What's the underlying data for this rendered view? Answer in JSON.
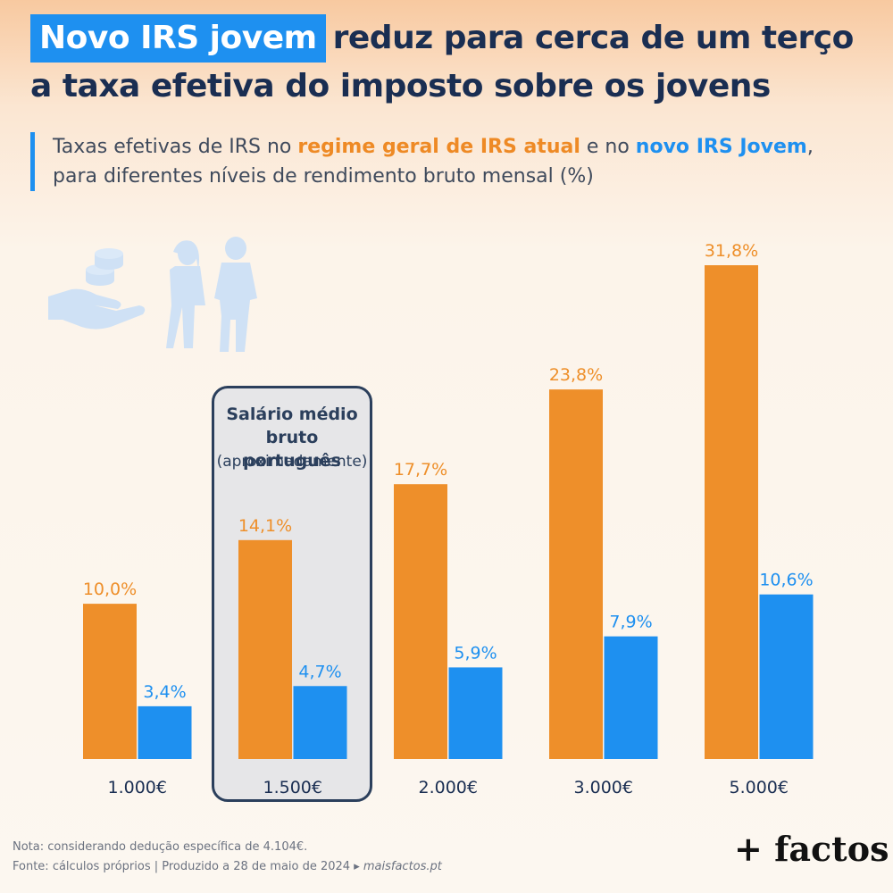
{
  "title": {
    "highlight": "Novo IRS jovem",
    "line1_rest": "reduz para cerca de um terço",
    "line2": "a taxa efetiva do imposto sobre os jovens"
  },
  "subtitle": {
    "part1": "Taxas efetivas de IRS no ",
    "orange": "regime geral de IRS atual",
    "part2": " e no ",
    "blue": "novo IRS Jovem",
    "part3": ",",
    "line2": "para diferentes níveis de rendimento bruto mensal (%)"
  },
  "highlight_box": {
    "title_line1": "Salário médio",
    "title_line2": "bruto português",
    "subtitle": "(aproximadamente)"
  },
  "colors": {
    "orange": "#ee8f2a",
    "blue": "#1e90f0",
    "dark": "#2b3f5c"
  },
  "chart_data": {
    "type": "bar",
    "categories": [
      "1.000€",
      "1.500€",
      "2.000€",
      "3.000€",
      "5.000€"
    ],
    "series": [
      {
        "name": "regime geral de IRS atual",
        "values": [
          10.0,
          14.1,
          17.7,
          23.8,
          31.8
        ],
        "labels": [
          "10,0%",
          "14,1%",
          "17,7%",
          "23,8%",
          "31,8%"
        ]
      },
      {
        "name": "novo IRS Jovem",
        "values": [
          3.4,
          4.7,
          5.9,
          7.9,
          10.6
        ],
        "labels": [
          "3,4%",
          "4,7%",
          "5,9%",
          "7,9%",
          "10,6%"
        ]
      }
    ],
    "ylim": [
      0,
      31.8
    ],
    "grid": false,
    "highlighted_category": "1.500€"
  },
  "footnote": {
    "nota": "Nota: considerando dedução específica de 4.104€.",
    "fonte": "Fonte: cálculos próprios  |  Produzido a 28 de maio de 2024 ▸ ",
    "site": "maisfactos.pt"
  },
  "brand": "+ factos",
  "icons": [
    "hand-coins-icon",
    "young-people-icon"
  ]
}
